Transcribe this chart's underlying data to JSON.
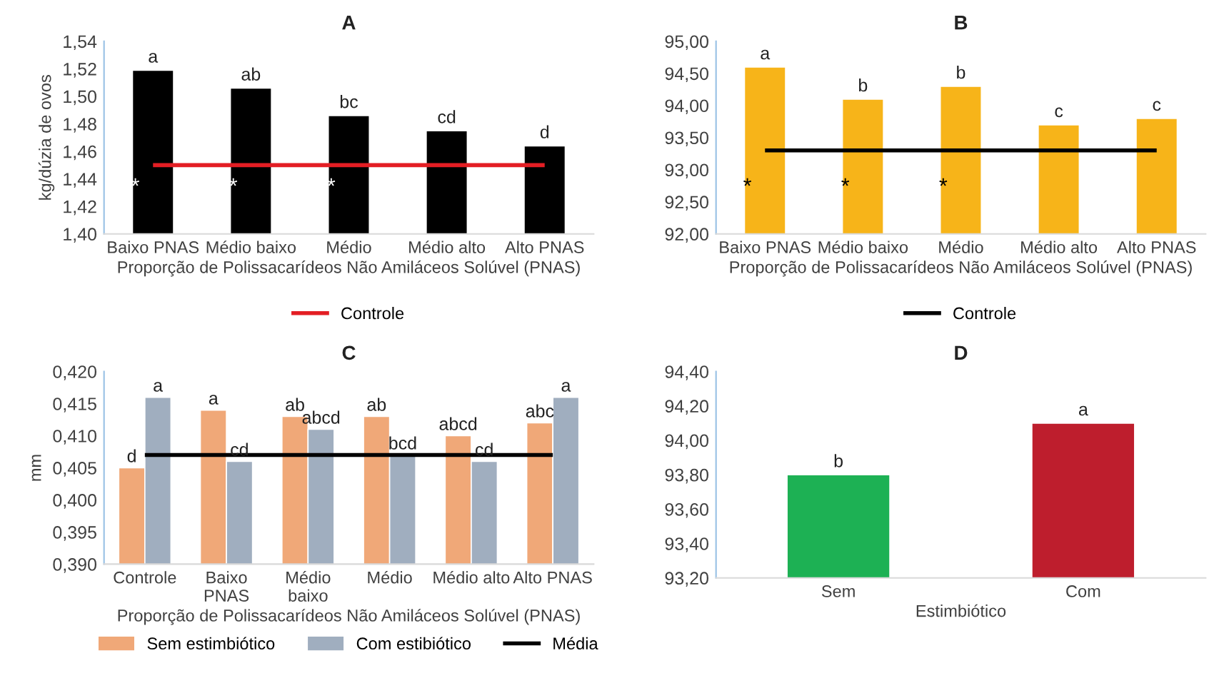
{
  "chart_data": [
    {
      "type": "bar",
      "title": "A",
      "xlabel": "Proporção de Polissacarídeos Não Amiláceos Solúvel (PNAS)",
      "ylabel": "kg/dúzia de ovos",
      "categories": [
        "Baixo PNAS",
        "Médio baixo",
        "Médio",
        "Médio alto",
        "Alto PNAS"
      ],
      "values": [
        1.519,
        1.506,
        1.486,
        1.475,
        1.464
      ],
      "color": "#000000",
      "value_labels": [
        "a",
        "ab",
        "bc",
        "cd",
        "d"
      ],
      "annotations": [
        "*",
        "*",
        "*"
      ],
      "ref_lines": [
        {
          "axis": "y",
          "value": 1.45,
          "label": "Controle",
          "color": "#e31e24"
        }
      ],
      "ylim": [
        1.4,
        1.54
      ],
      "yticks": [
        {
          "value": 1.4,
          "label": "1,40"
        },
        {
          "value": 1.42,
          "label": "1,42"
        },
        {
          "value": 1.44,
          "label": "1,44"
        },
        {
          "value": 1.46,
          "label": "1,46"
        },
        {
          "value": 1.48,
          "label": "1,48"
        },
        {
          "value": 1.5,
          "label": "1,50"
        },
        {
          "value": 1.52,
          "label": "1,52"
        },
        {
          "value": 1.54,
          "label": "1,54"
        }
      ],
      "grid": false,
      "legend": "bottom"
    },
    {
      "type": "bar",
      "title": "B",
      "xlabel": "Proporção de Polissacarídeos Não Amiláceos Solúvel (PNAS)",
      "categories": [
        "Baixo PNAS",
        "Médio baixo",
        "Médio",
        "Médio alto",
        "Alto PNAS"
      ],
      "values": [
        94.6,
        94.1,
        94.3,
        93.7,
        93.8
      ],
      "color": "#f7b419",
      "value_labels": [
        "a",
        "b",
        "b",
        "c",
        "c"
      ],
      "annotations": [
        "*",
        "*",
        "*"
      ],
      "ref_lines": [
        {
          "axis": "y",
          "value": 93.3,
          "label": "Controle",
          "color": "#000000"
        }
      ],
      "ylim": [
        92.0,
        95.0
      ],
      "yticks": [
        {
          "value": 92.0,
          "label": "92,00"
        },
        {
          "value": 92.5,
          "label": "92,50"
        },
        {
          "value": 93.0,
          "label": "93,00"
        },
        {
          "value": 93.5,
          "label": "93,50"
        },
        {
          "value": 94.0,
          "label": "94,00"
        },
        {
          "value": 94.5,
          "label": "94,50"
        },
        {
          "value": 95.0,
          "label": "95,00"
        }
      ],
      "grid": false,
      "legend": "bottom"
    },
    {
      "type": "bar",
      "title": "C",
      "xlabel": "Proporção de Polissacarídeos Não Amiláceos Solúvel (PNAS)",
      "ylabel": "mm",
      "categories": [
        "Controle",
        "Baixo\nPNAS",
        "Médio\nbaixo",
        "Médio",
        "Médio alto",
        "Alto PNAS"
      ],
      "series": [
        {
          "name": "Sem estimbiótico",
          "color": "#f0a878",
          "values": [
            0.405,
            0.414,
            0.413,
            0.413,
            0.41,
            0.412
          ],
          "value_labels": [
            "d",
            "a",
            "ab",
            "ab",
            "abcd",
            "abc"
          ]
        },
        {
          "name": "Com estibiótico",
          "color": "#a0aebf",
          "values": [
            0.416,
            0.406,
            0.411,
            0.407,
            0.406,
            0.416
          ],
          "value_labels": [
            "a",
            "cd",
            "abcd",
            "bcd",
            "cd",
            "a"
          ]
        }
      ],
      "ref_lines": [
        {
          "axis": "y",
          "value": 0.407,
          "label": "Média",
          "color": "#000000"
        }
      ],
      "ylim": [
        0.39,
        0.42
      ],
      "yticks": [
        {
          "value": 0.39,
          "label": "0,390"
        },
        {
          "value": 0.395,
          "label": "0,395"
        },
        {
          "value": 0.4,
          "label": "0,400"
        },
        {
          "value": 0.405,
          "label": "0,405"
        },
        {
          "value": 0.41,
          "label": "0,410"
        },
        {
          "value": 0.415,
          "label": "0,415"
        },
        {
          "value": 0.42,
          "label": "0,420"
        }
      ],
      "grid": false,
      "legend": "bottom"
    },
    {
      "type": "bar",
      "title": "D",
      "xlabel": "Estimbiótico",
      "categories": [
        "Sem",
        "Com"
      ],
      "values": [
        93.8,
        94.1
      ],
      "colors": [
        "#1db154",
        "#be1e2d"
      ],
      "value_labels": [
        "b",
        "a"
      ],
      "ylim": [
        93.2,
        94.4
      ],
      "yticks": [
        {
          "value": 93.2,
          "label": "93,20"
        },
        {
          "value": 93.4,
          "label": "93,40"
        },
        {
          "value": 93.6,
          "label": "93,60"
        },
        {
          "value": 93.8,
          "label": "93,80"
        },
        {
          "value": 94.0,
          "label": "94,00"
        },
        {
          "value": 94.2,
          "label": "94,20"
        },
        {
          "value": 94.4,
          "label": "94,40"
        }
      ],
      "grid": false
    }
  ]
}
